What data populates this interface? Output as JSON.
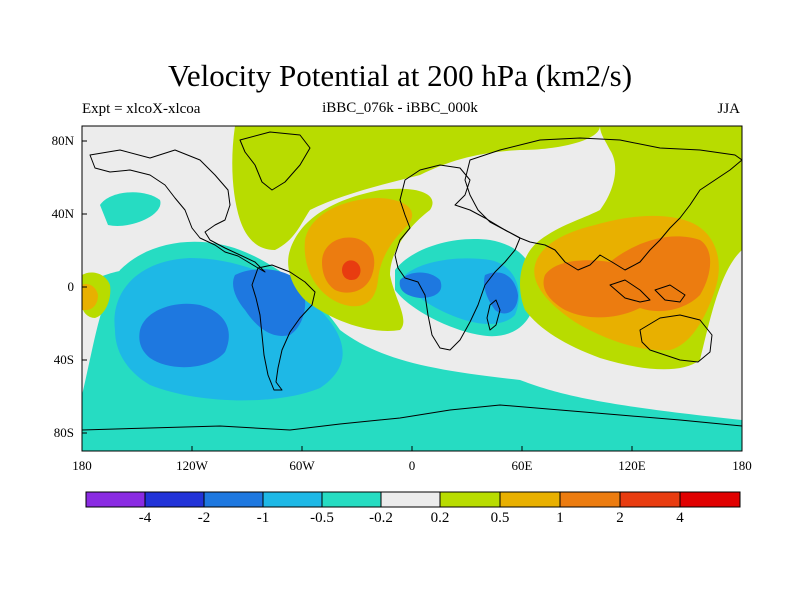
{
  "title": "Velocity Potential at 200 hPa (km2/s)",
  "subtitle_left": "Expt = xlcoX-xlcoa",
  "subtitle_center": "iBBC_076k - iBBC_000k",
  "subtitle_right": "JJA",
  "axes": {
    "x_ticks": [
      "180",
      "120W",
      "60W",
      "0",
      "60E",
      "120E",
      "180"
    ],
    "y_ticks": [
      "80N",
      "40N",
      "0",
      "40S",
      "80S"
    ]
  },
  "colorbar": {
    "colors": [
      "#8a2be2",
      "#2233d8",
      "#1e78e0",
      "#1eb8e6",
      "#26dcc2",
      "#ececec",
      "#b8dc00",
      "#e8b000",
      "#ec7c10",
      "#e83c10",
      "#e00000"
    ],
    "labels": [
      "-4",
      "-2",
      "-1",
      "-0.5",
      "-0.2",
      "0.2",
      "0.5",
      "1",
      "2",
      "4"
    ]
  },
  "palette": {
    "neutral": "#ececec",
    "pos1": "#b8dc00",
    "pos2": "#e8b000",
    "pos3": "#ec7c10",
    "pos4": "#e83c10",
    "neg1": "#26dcc2",
    "neg2": "#1eb8e6",
    "neg3": "#1e78e0"
  }
}
